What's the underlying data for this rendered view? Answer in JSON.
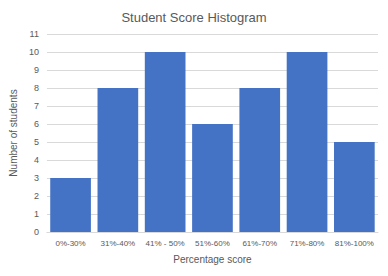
{
  "chart_data": {
    "type": "bar",
    "title": "Student Score Histogram",
    "x_label": "Percentage score",
    "y_label": "Number of students",
    "categories": [
      "0%-30%",
      "31%-40%",
      "41% - 50%",
      "51%-60%",
      "61%-70%",
      "71%-80%",
      "81%-100%"
    ],
    "values": [
      3,
      8,
      10,
      6,
      8,
      10,
      5
    ],
    "color": "#4472c4",
    "ylim": [
      0,
      11
    ],
    "yticks": [
      0,
      1,
      2,
      3,
      4,
      5,
      6,
      7,
      8,
      9,
      10,
      11
    ],
    "grid": true
  }
}
